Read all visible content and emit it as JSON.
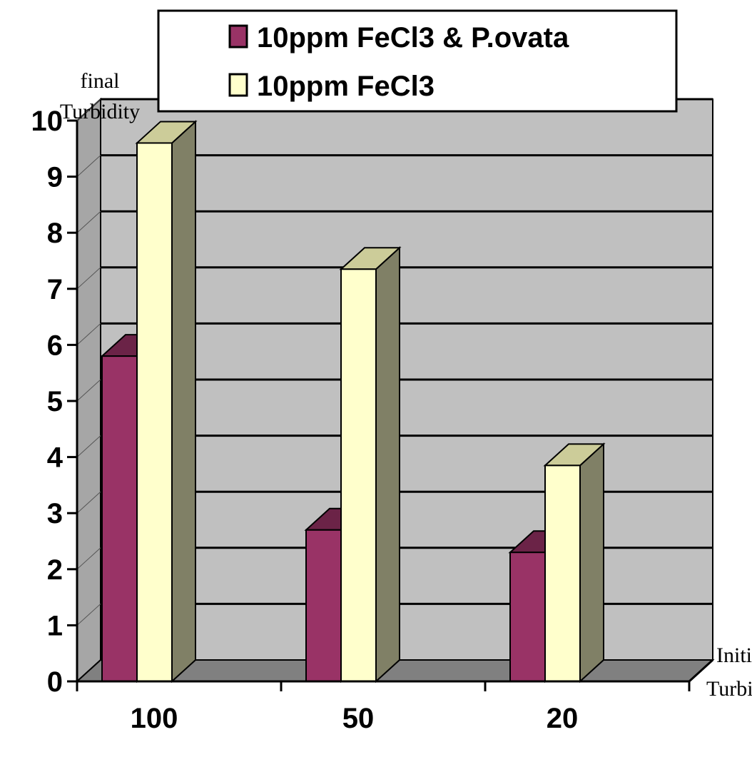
{
  "chart_data": {
    "type": "bar",
    "categories": [
      "100",
      "50",
      "20"
    ],
    "series": [
      {
        "name": "10ppm FeCl3 & P.ovata",
        "values": [
          5.8,
          2.7,
          2.3
        ],
        "color": "#993366"
      },
      {
        "name": "10ppm FeCl3",
        "values": [
          9.6,
          7.35,
          3.85
        ],
        "color": "#FFFFCC"
      }
    ],
    "ylabel": "final Turbidity",
    "ylabel_lines": [
      "final",
      "Turbidity"
    ],
    "xlabel": "Initial Turbidity",
    "xlabel_lines": [
      "Initial",
      "Turbidity"
    ],
    "ylim": [
      0,
      10
    ],
    "yticks": [
      "0",
      "1",
      "2",
      "3",
      "4",
      "5",
      "6",
      "7",
      "8",
      "9",
      "10"
    ],
    "grid": true,
    "three_d": true,
    "legend_position": "top",
    "colors": {
      "wall": "#C0C0C0",
      "floor": "#808080",
      "grid": "#000000",
      "series1_top": "#6B2347",
      "series2_side": "#808066",
      "series2_top": "#CCCC99"
    }
  }
}
